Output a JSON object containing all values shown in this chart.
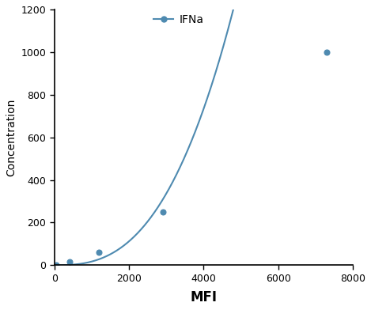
{
  "x_data": [
    50,
    400,
    1200,
    2900,
    7300
  ],
  "y_data": [
    0,
    15,
    62,
    250,
    1000
  ],
  "line_color": "#4E8AB0",
  "marker_color": "#4E8AB0",
  "marker_style": "o",
  "marker_size": 5,
  "line_width": 1.5,
  "xlabel": "MFI",
  "ylabel": "Concentration",
  "xlabel_fontsize": 12,
  "ylabel_fontsize": 10,
  "xlabel_fontweight": "bold",
  "ylabel_fontweight": "normal",
  "xlim": [
    0,
    8000
  ],
  "ylim": [
    0,
    1200
  ],
  "xticks": [
    0,
    2000,
    4000,
    6000,
    8000
  ],
  "yticks": [
    0,
    200,
    400,
    600,
    800,
    1000,
    1200
  ],
  "legend_label": "IFNa",
  "legend_fontsize": 10,
  "tick_fontsize": 9,
  "background_color": "#ffffff",
  "spine_color": "#000000"
}
